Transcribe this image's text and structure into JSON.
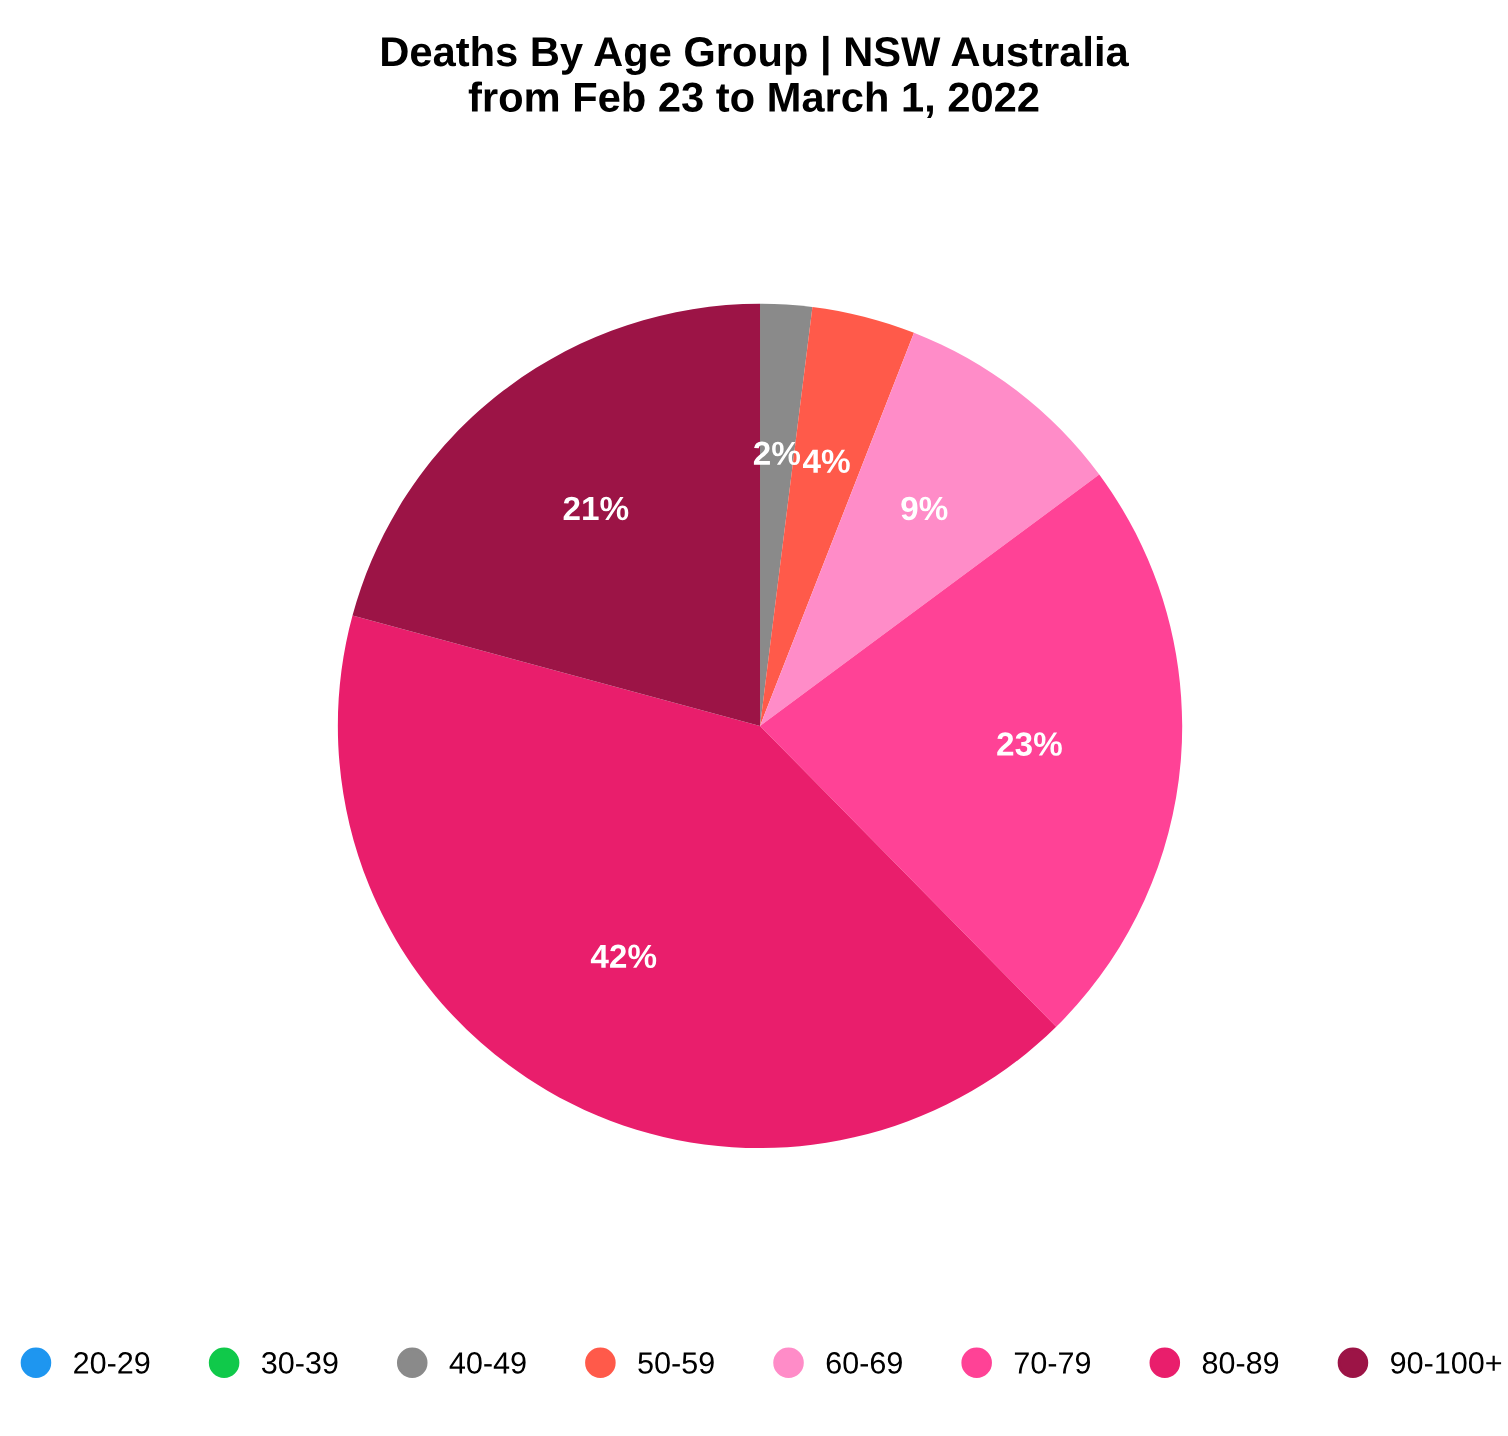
{
  "chart_data": {
    "type": "pie",
    "title": "Deaths By Age Group | NSW Australia\nfrom Feb 23 to March 1, 2022",
    "categories": [
      "20-29",
      "30-39",
      "40-49",
      "50-59",
      "60-69",
      "70-79",
      "80-89",
      "90-100+"
    ],
    "values": [
      0,
      0,
      2,
      4,
      9,
      23,
      42,
      21
    ],
    "colors": [
      "#1e96f0",
      "#10c94a",
      "#8a8a8a",
      "#ff5a4a",
      "#ff8cc8",
      "#ff4296",
      "#e91e6c",
      "#9c1446"
    ],
    "value_labels": [
      null,
      null,
      "2%",
      "4%",
      "9%",
      "23%",
      "42%",
      "21%"
    ],
    "legend": "bottom",
    "marker": "circle"
  }
}
